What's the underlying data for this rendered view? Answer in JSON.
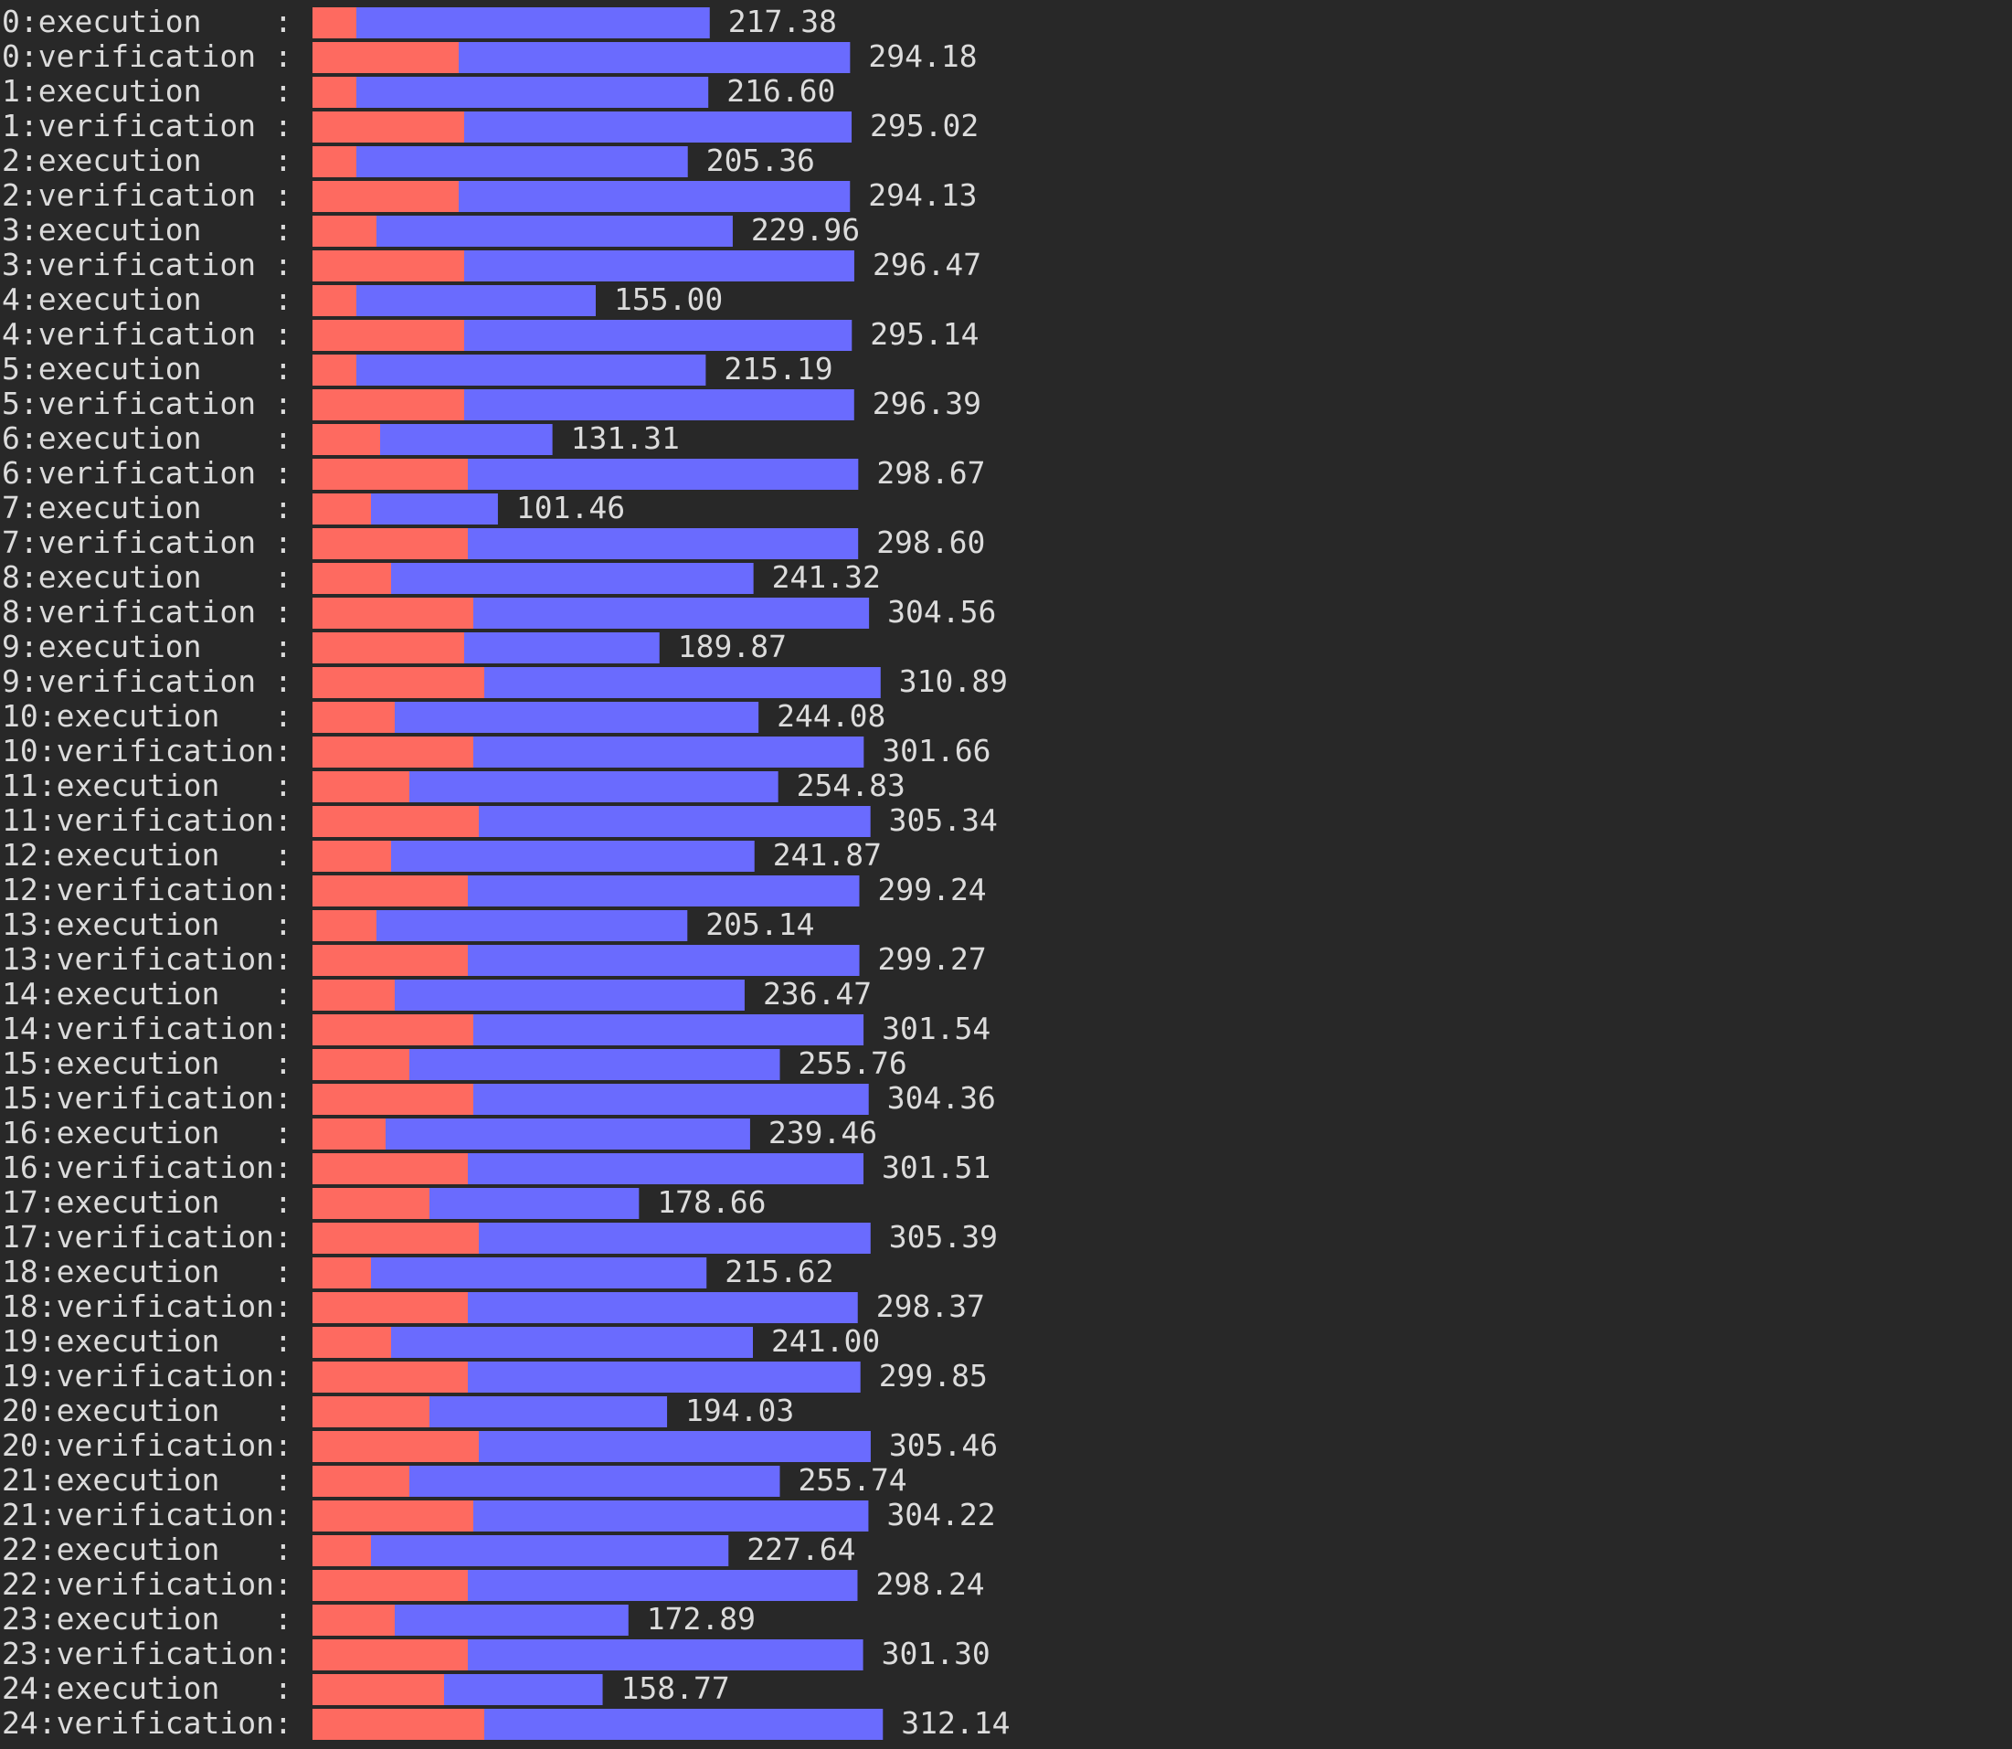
{
  "chart_data": {
    "type": "bar",
    "orientation": "horizontal",
    "stacked": true,
    "grid": false,
    "colors": {
      "background": "#282828",
      "text": "#dcdcdc",
      "segment_1": "#fe6a60",
      "segment_2": "#6a6bfe"
    },
    "categories": [
      "0:execution    :",
      "0:verification :",
      "1:execution    :",
      "1:verification :",
      "2:execution    :",
      "2:verification :",
      "3:execution    :",
      "3:verification :",
      "4:execution    :",
      "4:verification :",
      "5:execution    :",
      "5:verification :",
      "6:execution    :",
      "6:verification :",
      "7:execution    :",
      "7:verification :",
      "8:execution    :",
      "8:verification :",
      "9:execution    :",
      "9:verification :",
      "10:execution   :",
      "10:verification:",
      "11:execution   :",
      "11:verification:",
      "12:execution   :",
      "12:verification:",
      "13:execution   :",
      "13:verification:",
      "14:execution   :",
      "14:verification:",
      "15:execution   :",
      "15:verification:",
      "16:execution   :",
      "16:verification:",
      "17:execution   :",
      "17:verification:",
      "18:execution   :",
      "18:verification:",
      "19:execution   :",
      "19:verification:",
      "20:execution   :",
      "20:verification:",
      "21:execution   :",
      "21:verification:",
      "22:execution   :",
      "22:verification:",
      "23:execution   :",
      "23:verification:",
      "24:execution   :",
      "24:verification:"
    ],
    "series": [
      {
        "color": "#fe6a60",
        "values": [
          24,
          80,
          24,
          83,
          24,
          80,
          35,
          83,
          24,
          83,
          24,
          83,
          37,
          85,
          32,
          85,
          43,
          88,
          83,
          94,
          45,
          88,
          53,
          91,
          43,
          85,
          35,
          85,
          45,
          88,
          53,
          88,
          40,
          85,
          64,
          91,
          32,
          85,
          43,
          85,
          64,
          91,
          53,
          88,
          32,
          85,
          45,
          85,
          72,
          94
        ]
      },
      {
        "color": "#6a6bfe",
        "values": [
          193.38,
          214.18,
          192.6,
          212.02,
          181.36,
          214.13,
          194.96,
          213.47,
          131,
          212.14,
          191.19,
          213.39,
          94.31,
          213.67,
          69.46,
          213.6,
          198.32,
          216.56,
          106.87,
          216.89,
          199.08,
          213.66,
          201.83,
          214.34,
          198.87,
          214.24,
          170.14,
          214.27,
          191.47,
          213.54,
          202.76,
          216.36,
          199.46,
          216.51,
          114.66,
          214.39,
          183.62,
          213.37,
          198,
          214.85,
          130.03,
          214.46,
          202.74,
          216.22,
          195.64,
          213.24,
          127.89,
          216.3,
          86.77,
          218.14
        ]
      }
    ],
    "totals": [
      "217.38",
      "294.18",
      "216.60",
      "295.02",
      "205.36",
      "294.13",
      "229.96",
      "296.47",
      "155.00",
      "295.14",
      "215.19",
      "296.39",
      "131.31",
      "298.67",
      "101.46",
      "298.60",
      "241.32",
      "304.56",
      "189.87",
      "310.89",
      "244.08",
      "301.66",
      "254.83",
      "305.34",
      "241.87",
      "299.24",
      "205.14",
      "299.27",
      "236.47",
      "301.54",
      "255.76",
      "304.36",
      "239.46",
      "301.51",
      "178.66",
      "305.39",
      "215.62",
      "298.37",
      "241.00",
      "299.85",
      "194.03",
      "305.46",
      "255.74",
      "304.22",
      "227.64",
      "298.24",
      "172.89",
      "301.30",
      "158.77",
      "312.14"
    ]
  }
}
